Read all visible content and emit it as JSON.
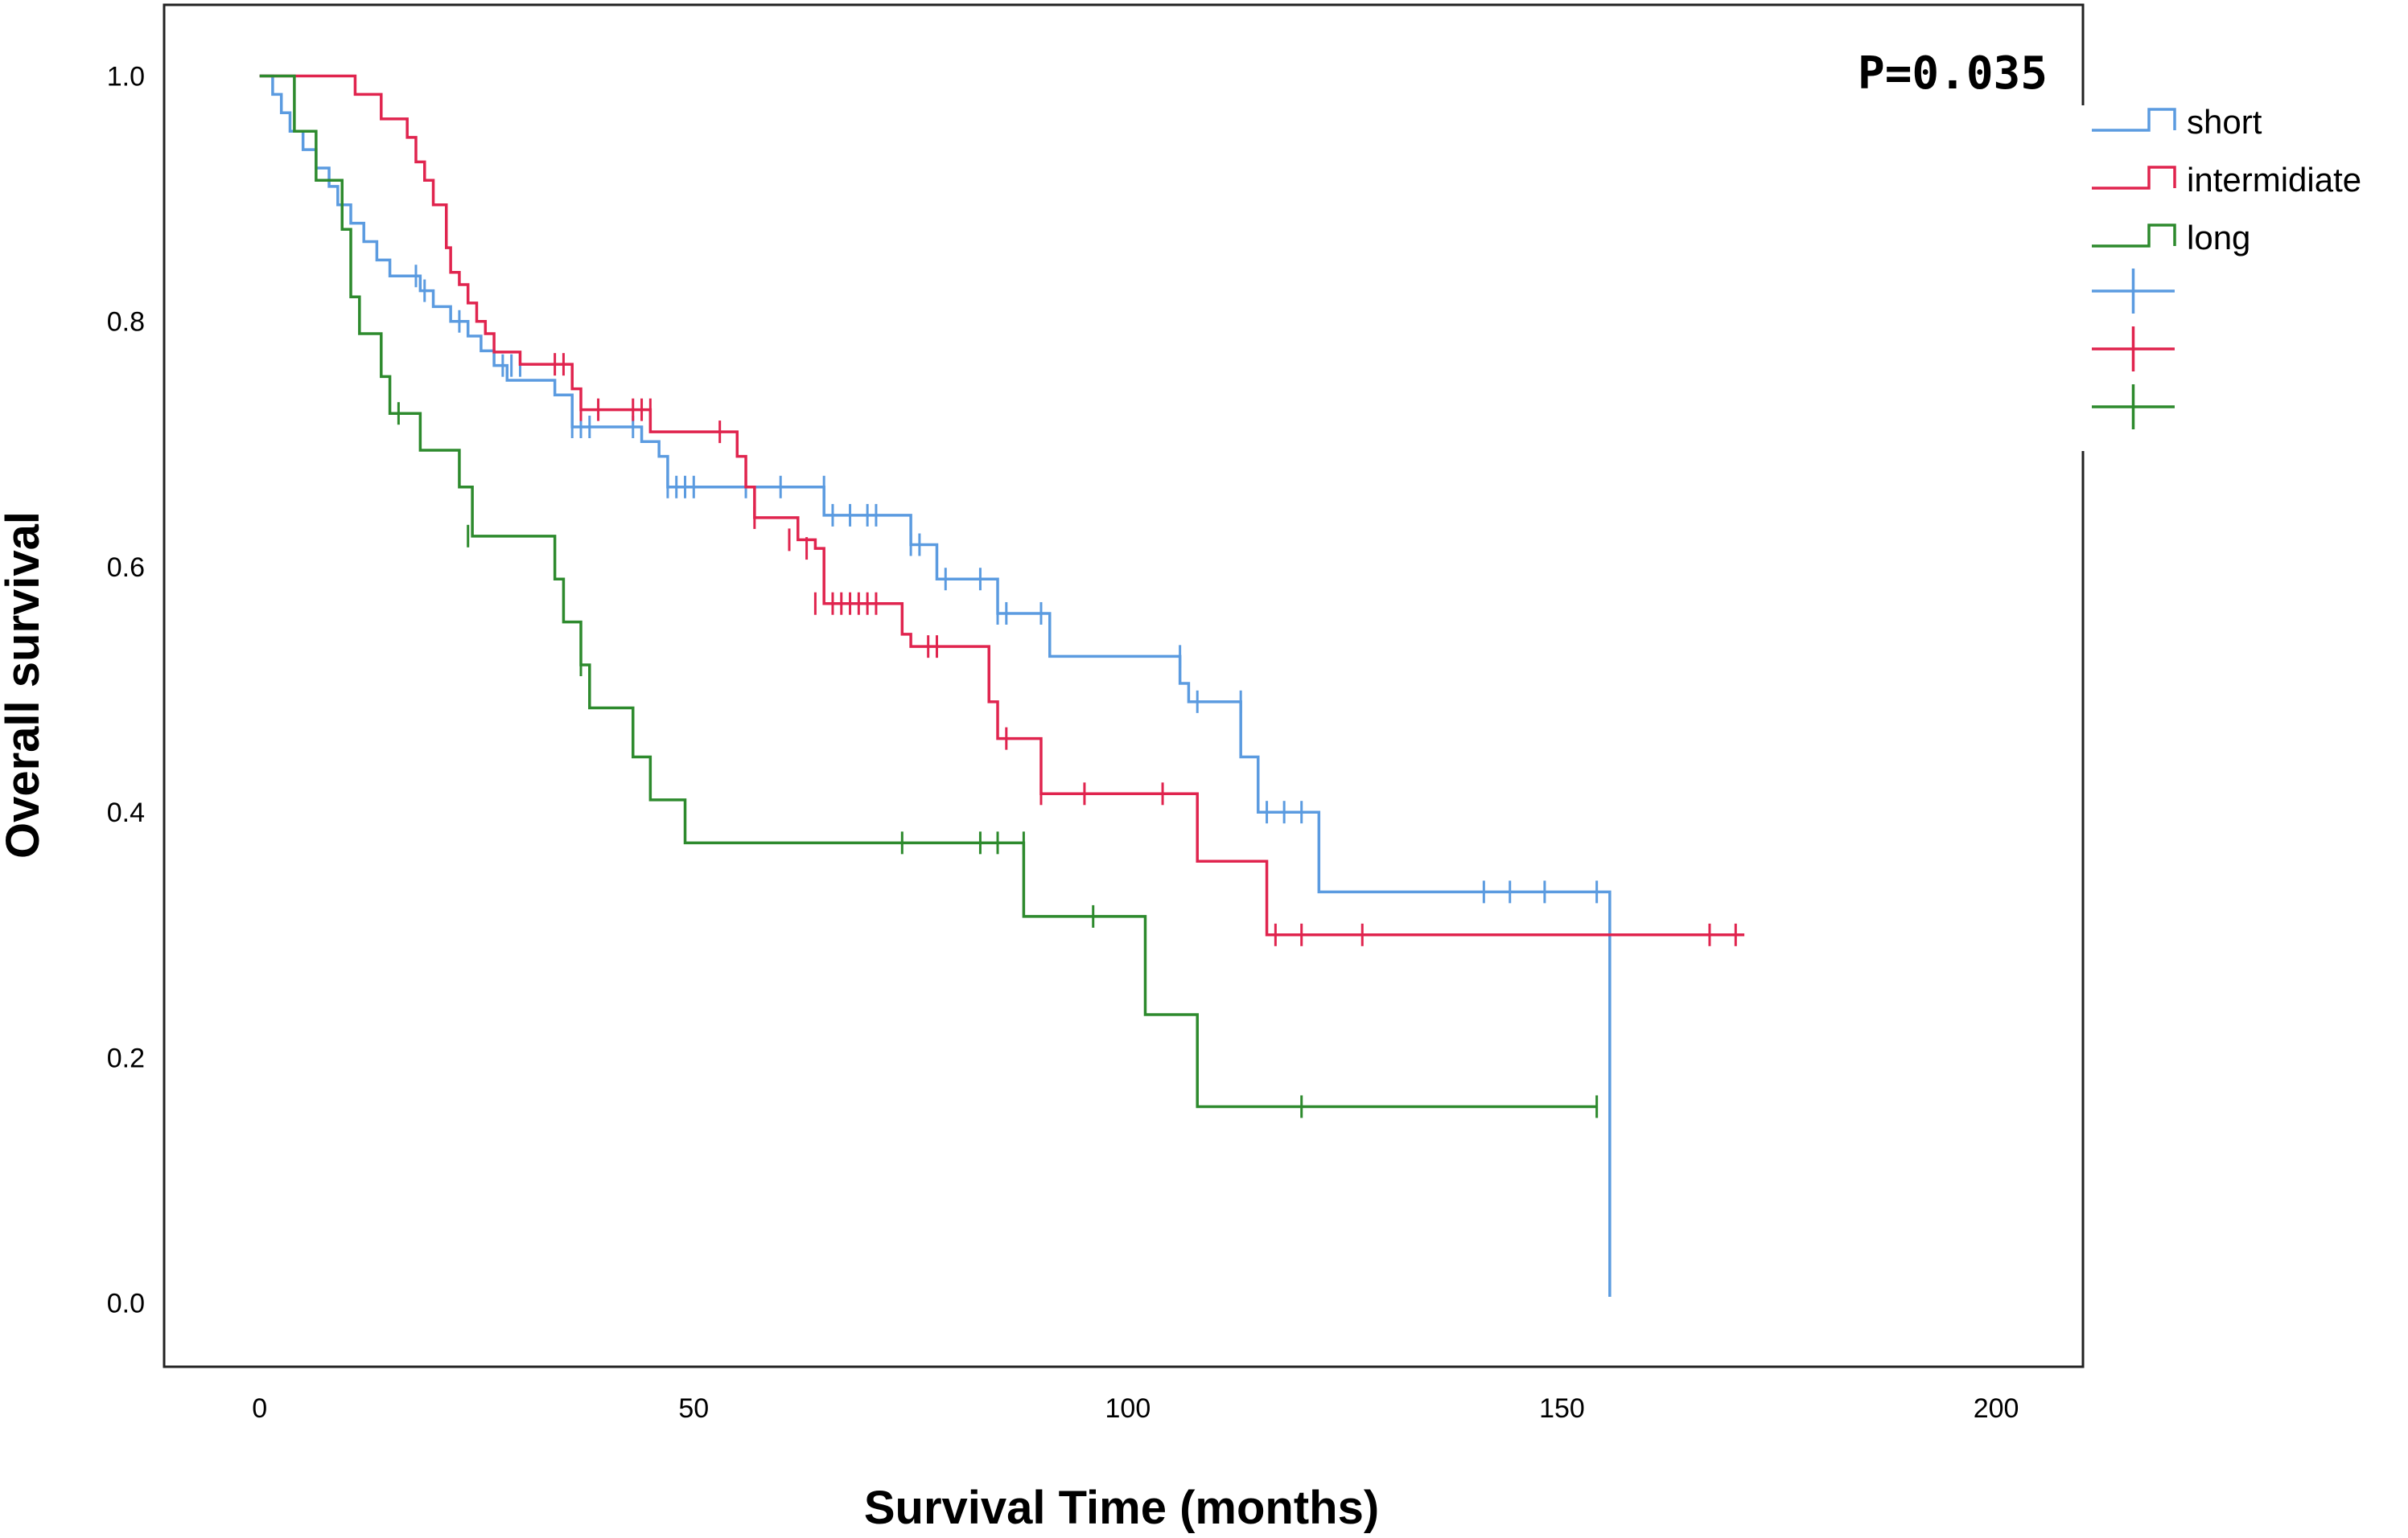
{
  "chart_data": {
    "type": "line",
    "subtype": "kaplan-meier",
    "title": "",
    "xlabel": "Survival Time (months)",
    "ylabel": "Overall survival",
    "xlim": [
      -11,
      210
    ],
    "ylim": [
      -0.052,
      1.058
    ],
    "xticks": [
      0,
      50,
      100,
      150,
      200
    ],
    "xtick_labels": [
      "0",
      "50",
      "100",
      "150",
      "200"
    ],
    "yticks": [
      0.0,
      0.2,
      0.4,
      0.6,
      0.8,
      1.0
    ],
    "ytick_labels": [
      "0.0",
      "0.2",
      "0.4",
      "0.6",
      "0.8",
      "1.0"
    ],
    "annotation": "P=0.035",
    "legend_position": "outside-right",
    "legend_censor_entries": 3,
    "series": [
      {
        "name": "short",
        "color": "#5b9be0",
        "steps": [
          [
            0,
            1.0
          ],
          [
            1.5,
            0.985
          ],
          [
            2.5,
            0.97
          ],
          [
            3.5,
            0.955
          ],
          [
            5,
            0.94
          ],
          [
            6.5,
            0.925
          ],
          [
            8,
            0.91
          ],
          [
            9,
            0.895
          ],
          [
            10.5,
            0.88
          ],
          [
            12,
            0.865
          ],
          [
            13.5,
            0.85
          ],
          [
            15,
            0.837
          ],
          [
            18.5,
            0.825
          ],
          [
            20,
            0.812
          ],
          [
            22,
            0.8
          ],
          [
            24,
            0.788
          ],
          [
            25.5,
            0.776
          ],
          [
            27,
            0.764
          ],
          [
            28.5,
            0.752
          ],
          [
            34,
            0.74
          ],
          [
            36,
            0.714
          ],
          [
            44,
            0.702
          ],
          [
            46,
            0.69
          ],
          [
            47,
            0.665
          ],
          [
            65,
            0.642
          ],
          [
            75,
            0.618
          ],
          [
            78,
            0.59
          ],
          [
            85,
            0.562
          ],
          [
            91,
            0.527
          ],
          [
            106,
            0.505
          ],
          [
            107,
            0.49
          ],
          [
            113,
            0.445
          ],
          [
            115,
            0.4
          ],
          [
            122,
            0.335
          ],
          [
            155.5,
            0.005
          ]
        ],
        "end": 155.5,
        "censored": [
          [
            18,
            0.837
          ],
          [
            19,
            0.825
          ],
          [
            23,
            0.8
          ],
          [
            28,
            0.764
          ],
          [
            29,
            0.764
          ],
          [
            30,
            0.764
          ],
          [
            36,
            0.714
          ],
          [
            37,
            0.714
          ],
          [
            38,
            0.714
          ],
          [
            43,
            0.714
          ],
          [
            47,
            0.665
          ],
          [
            48,
            0.665
          ],
          [
            49,
            0.665
          ],
          [
            50,
            0.665
          ],
          [
            56,
            0.665
          ],
          [
            60,
            0.665
          ],
          [
            65,
            0.665
          ],
          [
            66,
            0.642
          ],
          [
            68,
            0.642
          ],
          [
            70,
            0.642
          ],
          [
            71,
            0.642
          ],
          [
            75,
            0.618
          ],
          [
            76,
            0.618
          ],
          [
            79,
            0.59
          ],
          [
            83,
            0.59
          ],
          [
            85,
            0.562
          ],
          [
            86,
            0.562
          ],
          [
            90,
            0.562
          ],
          [
            106,
            0.527
          ],
          [
            108,
            0.49
          ],
          [
            113,
            0.49
          ],
          [
            116,
            0.4
          ],
          [
            118,
            0.4
          ],
          [
            120,
            0.4
          ],
          [
            141,
            0.335
          ],
          [
            144,
            0.335
          ],
          [
            148,
            0.335
          ],
          [
            154,
            0.335
          ]
        ]
      },
      {
        "name": "intermidiate",
        "color": "#e0244e",
        "steps": [
          [
            0,
            1.0
          ],
          [
            11,
            0.985
          ],
          [
            14,
            0.965
          ],
          [
            17,
            0.95
          ],
          [
            18,
            0.93
          ],
          [
            19,
            0.915
          ],
          [
            20,
            0.895
          ],
          [
            21.5,
            0.86
          ],
          [
            22,
            0.84
          ],
          [
            23,
            0.83
          ],
          [
            24,
            0.815
          ],
          [
            25,
            0.8
          ],
          [
            26,
            0.79
          ],
          [
            27,
            0.775
          ],
          [
            30,
            0.765
          ],
          [
            36,
            0.745
          ],
          [
            37,
            0.728
          ],
          [
            45,
            0.71
          ],
          [
            55,
            0.69
          ],
          [
            56,
            0.665
          ],
          [
            57,
            0.64
          ],
          [
            62,
            0.622
          ],
          [
            64,
            0.615
          ],
          [
            65,
            0.57
          ],
          [
            74,
            0.545
          ],
          [
            75,
            0.535
          ],
          [
            84,
            0.49
          ],
          [
            85,
            0.46
          ],
          [
            90,
            0.415
          ],
          [
            108,
            0.36
          ],
          [
            116,
            0.3
          ],
          [
            171,
            0.3
          ]
        ],
        "end": 171,
        "censored": [
          [
            34,
            0.765
          ],
          [
            35,
            0.765
          ],
          [
            37,
            0.728
          ],
          [
            39,
            0.728
          ],
          [
            43,
            0.728
          ],
          [
            44,
            0.728
          ],
          [
            45,
            0.728
          ],
          [
            53,
            0.71
          ],
          [
            57,
            0.64
          ],
          [
            61,
            0.622
          ],
          [
            63,
            0.615
          ],
          [
            64,
            0.57
          ],
          [
            66,
            0.57
          ],
          [
            67,
            0.57
          ],
          [
            68,
            0.57
          ],
          [
            69,
            0.57
          ],
          [
            70,
            0.57
          ],
          [
            71,
            0.57
          ],
          [
            77,
            0.535
          ],
          [
            78,
            0.535
          ],
          [
            86,
            0.46
          ],
          [
            90,
            0.415
          ],
          [
            95,
            0.415
          ],
          [
            104,
            0.415
          ],
          [
            117,
            0.3
          ],
          [
            120,
            0.3
          ],
          [
            127,
            0.3
          ],
          [
            167,
            0.3
          ],
          [
            170,
            0.3
          ]
        ],
        "censor_note": ""
      },
      {
        "name": "long",
        "color": "#2d8a2d",
        "steps": [
          [
            0,
            1.0
          ],
          [
            4,
            0.955
          ],
          [
            6.5,
            0.915
          ],
          [
            9.5,
            0.875
          ],
          [
            10.5,
            0.82
          ],
          [
            11.5,
            0.79
          ],
          [
            14,
            0.755
          ],
          [
            15,
            0.725
          ],
          [
            18.5,
            0.695
          ],
          [
            23,
            0.665
          ],
          [
            24.5,
            0.625
          ],
          [
            34,
            0.59
          ],
          [
            35,
            0.555
          ],
          [
            37,
            0.52
          ],
          [
            38,
            0.485
          ],
          [
            43,
            0.445
          ],
          [
            45,
            0.41
          ],
          [
            49,
            0.375
          ],
          [
            88,
            0.315
          ],
          [
            102,
            0.235
          ],
          [
            108,
            0.16
          ],
          [
            154,
            0.16
          ]
        ],
        "end": 154,
        "censored": [
          [
            16,
            0.725
          ],
          [
            24,
            0.625
          ],
          [
            37,
            0.52
          ],
          [
            74,
            0.375
          ],
          [
            83,
            0.375
          ],
          [
            85,
            0.375
          ],
          [
            88,
            0.375
          ],
          [
            96,
            0.315
          ],
          [
            120,
            0.16
          ],
          [
            154,
            0.16
          ]
        ]
      }
    ]
  }
}
